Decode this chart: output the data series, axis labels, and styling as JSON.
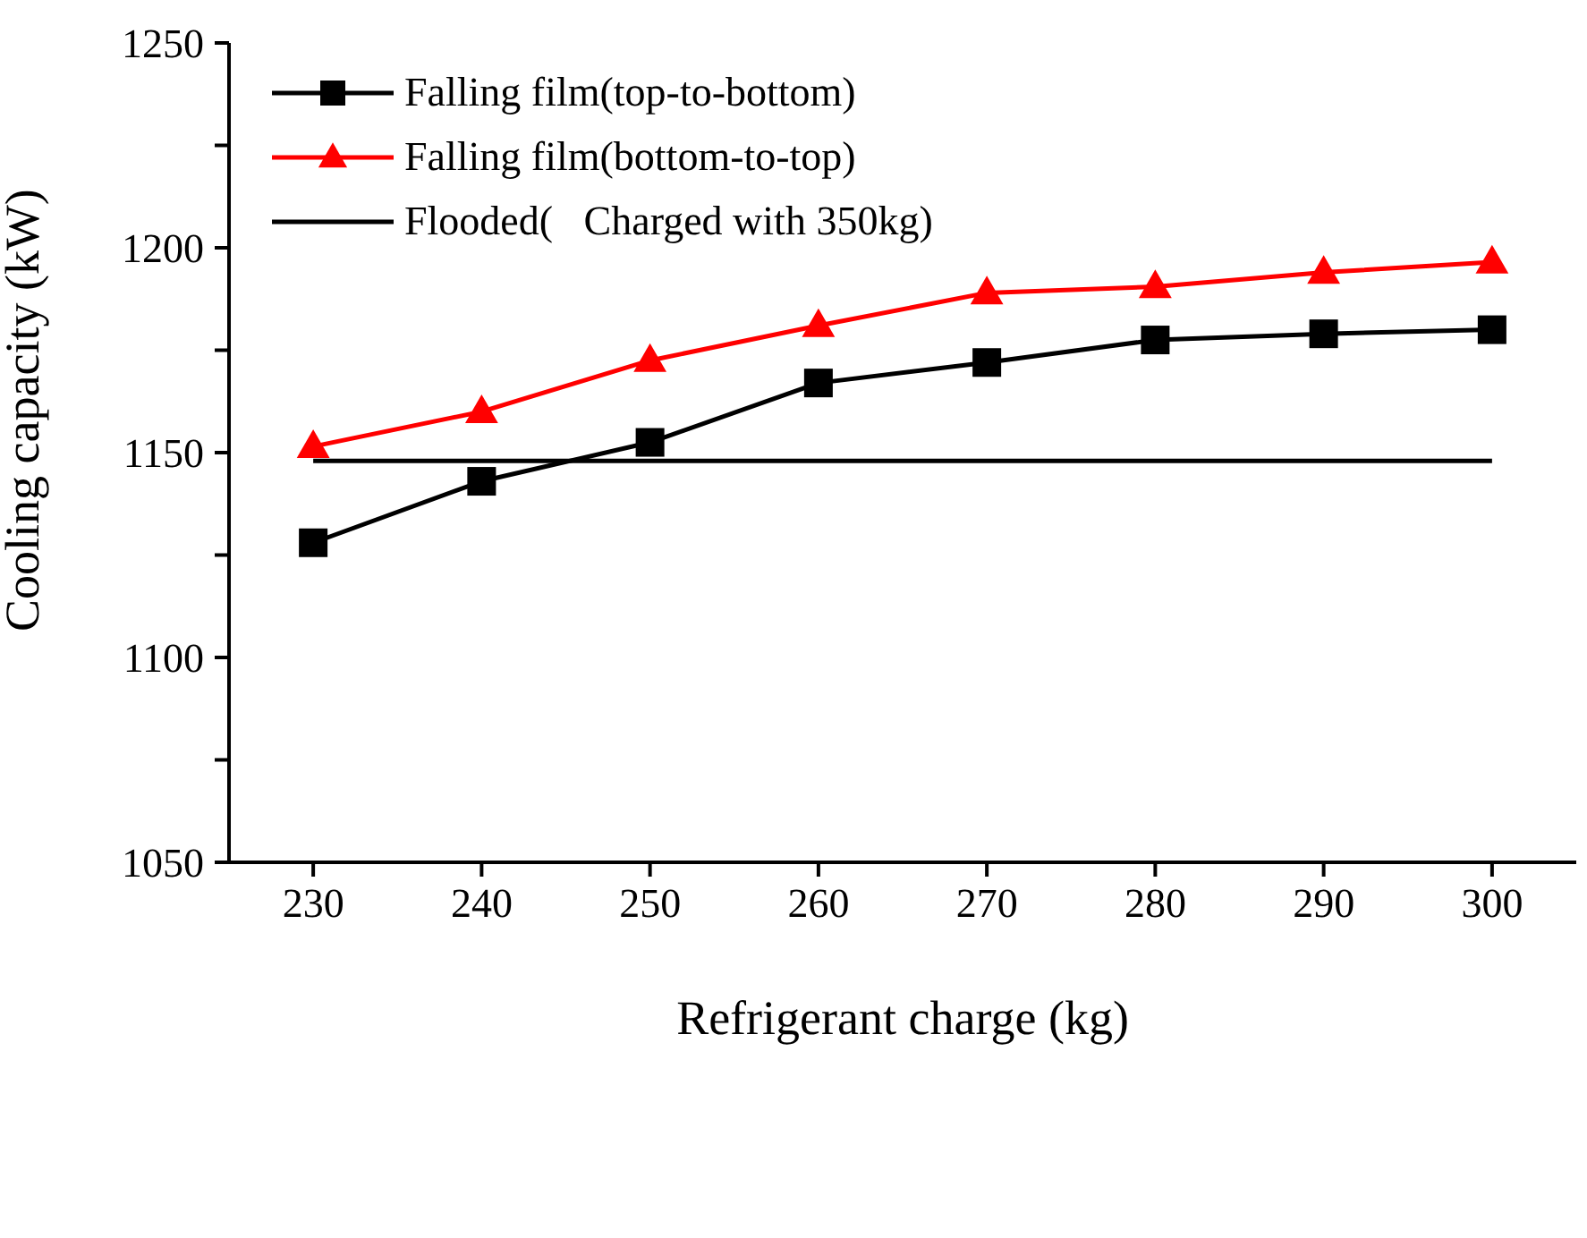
{
  "chart_data": {
    "type": "line",
    "xlabel": "Refrigerant charge (kg)",
    "ylabel": "Cooling capacity (kW)",
    "x": [
      230,
      240,
      250,
      260,
      270,
      280,
      290,
      300
    ],
    "series": [
      {
        "name": "Falling film(top-to-bottom)",
        "color": "#000000",
        "marker": "square",
        "values": [
          1128,
          1143,
          1152.5,
          1167,
          1172,
          1177.5,
          1179,
          1180
        ]
      },
      {
        "name": "Falling film(bottom-to-top)",
        "color": "#ff0000",
        "marker": "triangle",
        "values": [
          1151.5,
          1160,
          1172.5,
          1181,
          1189,
          1190.5,
          1194,
          1196.5
        ]
      },
      {
        "name": "Flooded(   Charged with 350kg)",
        "color": "#000000",
        "marker": "none",
        "x": [
          230,
          300
        ],
        "values": [
          1148,
          1148
        ]
      }
    ],
    "xlim": [
      225,
      305
    ],
    "xticks": [
      230,
      240,
      250,
      260,
      270,
      280,
      290,
      300
    ],
    "ylim": [
      1050,
      1250
    ],
    "yticks": [
      1050,
      {
        "value": 1075,
        "label": null
      },
      1100,
      {
        "value": 1125,
        "label": null
      },
      1150,
      {
        "value": 1175,
        "label": null
      },
      1200,
      {
        "value": 1225,
        "label": null
      },
      1250
    ],
    "grid": false,
    "legend": "top left",
    "line_style": "solid"
  }
}
